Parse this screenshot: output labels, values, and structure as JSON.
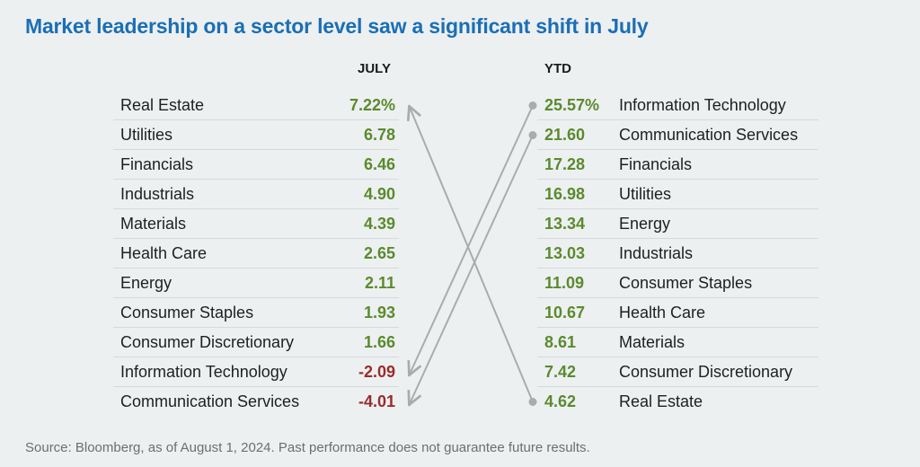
{
  "title": "Market leadership on a sector level saw a significant shift in July",
  "source": "Source: Bloomberg, as of August 1, 2024. Past performance does not guarantee future results.",
  "colors": {
    "title": "#1a6fb5",
    "positive": "#5b8a2e",
    "negative": "#9b2b2b",
    "arrow": "#a9acae"
  },
  "chart_data": {
    "type": "table",
    "title": "Market leadership on a sector level saw a significant shift in July",
    "july": {
      "header": "JULY",
      "rows": [
        {
          "sector": "Real Estate",
          "value": "7.22%"
        },
        {
          "sector": "Utilities",
          "value": "6.78"
        },
        {
          "sector": "Financials",
          "value": "6.46"
        },
        {
          "sector": "Industrials",
          "value": "4.90"
        },
        {
          "sector": "Materials",
          "value": "4.39"
        },
        {
          "sector": "Health Care",
          "value": "2.65"
        },
        {
          "sector": "Energy",
          "value": "2.11"
        },
        {
          "sector": "Consumer Staples",
          "value": "1.93"
        },
        {
          "sector": "Consumer Discretionary",
          "value": "1.66"
        },
        {
          "sector": "Information Technology",
          "value": "-2.09"
        },
        {
          "sector": "Communication Services",
          "value": "-4.01"
        }
      ]
    },
    "ytd": {
      "header": "YTD",
      "rows": [
        {
          "sector": "Information Technology",
          "value": "25.57%"
        },
        {
          "sector": "Communication Services",
          "value": "21.60"
        },
        {
          "sector": "Financials",
          "value": "17.28"
        },
        {
          "sector": "Utilities",
          "value": "16.98"
        },
        {
          "sector": "Energy",
          "value": "13.34"
        },
        {
          "sector": "Industrials",
          "value": "13.03"
        },
        {
          "sector": "Consumer Staples",
          "value": "11.09"
        },
        {
          "sector": "Health Care",
          "value": "10.67"
        },
        {
          "sector": "Materials",
          "value": "8.61"
        },
        {
          "sector": "Consumer Discretionary",
          "value": "7.42"
        },
        {
          "sector": "Real Estate",
          "value": "4.62"
        }
      ]
    },
    "arrows": [
      {
        "from": "YTD Real Estate",
        "to": "JULY Real Estate"
      },
      {
        "from": "YTD Information Technology",
        "to": "JULY Information Technology"
      },
      {
        "from": "YTD Communication Services",
        "to": "JULY Communication Services"
      }
    ]
  }
}
